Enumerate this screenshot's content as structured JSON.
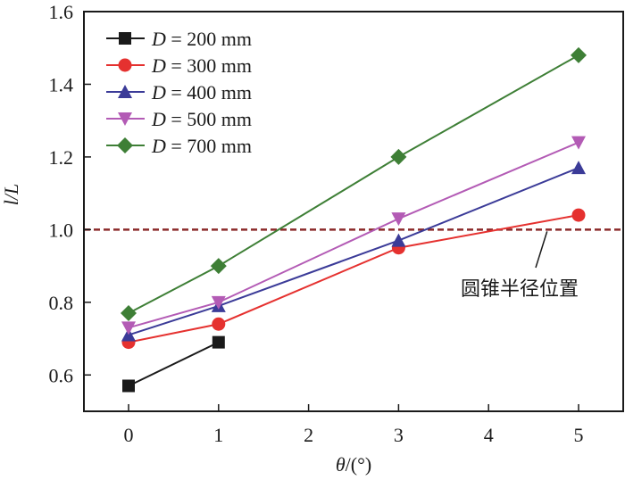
{
  "chart_data": {
    "type": "line",
    "title": "",
    "xlabel": "θ/(°)",
    "xlabel_var": "θ",
    "xlabel_unit": "/(°)",
    "ylabel": "l/L",
    "xlim": [
      -0.5,
      5.5
    ],
    "ylim": [
      0.5,
      1.6
    ],
    "xticks": [
      0,
      1,
      2,
      3,
      4,
      5
    ],
    "xtick_labels": [
      "0",
      "1",
      "2",
      "3",
      "4",
      "5"
    ],
    "yticks": [
      0.6,
      0.8,
      1.0,
      1.2,
      1.4,
      1.6
    ],
    "ytick_labels": [
      "0.6",
      "0.8",
      "1.0",
      "1.2",
      "1.4",
      "1.6"
    ],
    "grid": false,
    "legend_position": "top-left",
    "series": [
      {
        "name": "D = 200 mm",
        "var": "D",
        "rest": " = 200 mm",
        "color": "#1a1a1a",
        "marker": "square",
        "x": [
          0,
          1
        ],
        "values": [
          0.57,
          0.69
        ]
      },
      {
        "name": "D = 300 mm",
        "var": "D",
        "rest": " = 300 mm",
        "color": "#e5312f",
        "marker": "circle",
        "x": [
          0,
          1,
          3,
          5
        ],
        "values": [
          0.69,
          0.74,
          0.95,
          1.04
        ]
      },
      {
        "name": "D = 400 mm",
        "var": "D",
        "rest": " = 400 mm",
        "color": "#3b3b98",
        "marker": "triangle-up",
        "x": [
          0,
          1,
          3,
          5
        ],
        "values": [
          0.71,
          0.79,
          0.97,
          1.17
        ]
      },
      {
        "name": "D = 500 mm",
        "var": "D",
        "rest": " = 500 mm",
        "color": "#b35bb5",
        "marker": "triangle-down",
        "x": [
          0,
          1,
          3,
          5
        ],
        "values": [
          0.73,
          0.8,
          1.03,
          1.24
        ]
      },
      {
        "name": "D = 700 mm",
        "var": "D",
        "rest": " = 700 mm",
        "color": "#3e7f36",
        "marker": "diamond",
        "x": [
          0,
          1,
          3,
          5
        ],
        "values": [
          0.77,
          0.9,
          1.2,
          1.48
        ]
      }
    ],
    "reference_line": {
      "y": 1.0,
      "color": "#8b2a2a",
      "style": "dashed"
    },
    "annotation": {
      "text": "圆锥半径位置",
      "points_to_x": 4.65,
      "points_to_y": 1.0
    }
  }
}
